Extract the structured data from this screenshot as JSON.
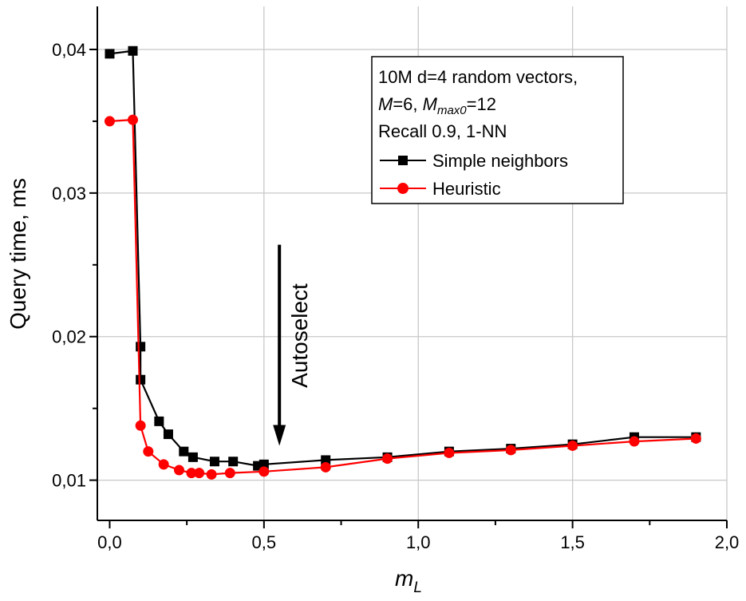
{
  "chart_data": {
    "type": "line",
    "title": "",
    "xlabel": "m",
    "xlabel_sub": "L",
    "ylabel": "Query time, ms",
    "xlim": [
      -0.04,
      2.0
    ],
    "ylim": [
      0.0072,
      0.043
    ],
    "x_ticks": [
      0.0,
      0.5,
      1.0,
      1.5,
      2.0
    ],
    "x_tick_labels": [
      "0,0",
      "0,5",
      "1,0",
      "1,5",
      "2,0"
    ],
    "y_ticks": [
      0.01,
      0.02,
      0.03,
      0.04
    ],
    "y_tick_labels": [
      "0,01",
      "0,02",
      "0,03",
      "0,04"
    ],
    "grid": true,
    "legend_position": "top-right",
    "legend_header": {
      "line1": "10M d=4 random vectors,",
      "line2_parts": [
        {
          "text": "M",
          "italic": true
        },
        {
          "text": "=6, "
        },
        {
          "text": "M",
          "italic": true
        },
        {
          "text": "max0",
          "italic": true,
          "sub": true
        },
        {
          "text": "=12"
        }
      ],
      "line3": "Recall 0.9, 1-NN"
    },
    "annotation": {
      "text": "Autoselect",
      "arrow_x": 0.55,
      "arrow_y_top": 0.0264,
      "arrow_y_bottom": 0.0124
    },
    "series": [
      {
        "name": "Simple neighbors",
        "color": "#000000",
        "marker": "square",
        "x": [
          0.0,
          0.075,
          0.1,
          0.1,
          0.16,
          0.19,
          0.24,
          0.27,
          0.34,
          0.4,
          0.48,
          0.5,
          0.7,
          0.9,
          1.1,
          1.3,
          1.5,
          1.7,
          1.9
        ],
        "y": [
          0.0397,
          0.0399,
          0.0193,
          0.017,
          0.0141,
          0.0132,
          0.012,
          0.0116,
          0.0113,
          0.0113,
          0.011,
          0.0111,
          0.0114,
          0.0116,
          0.012,
          0.0122,
          0.0125,
          0.013,
          0.013
        ]
      },
      {
        "name": "Heuristic",
        "color": "#ff0000",
        "marker": "circle",
        "x": [
          0.0,
          0.075,
          0.1,
          0.125,
          0.175,
          0.225,
          0.265,
          0.29,
          0.33,
          0.39,
          0.5,
          0.7,
          0.9,
          1.1,
          1.3,
          1.5,
          1.7,
          1.9
        ],
        "y": [
          0.035,
          0.0351,
          0.0138,
          0.012,
          0.0111,
          0.0107,
          0.0105,
          0.0105,
          0.0104,
          0.0105,
          0.0106,
          0.0109,
          0.0115,
          0.0119,
          0.0121,
          0.0124,
          0.0127,
          0.0129
        ]
      }
    ]
  }
}
